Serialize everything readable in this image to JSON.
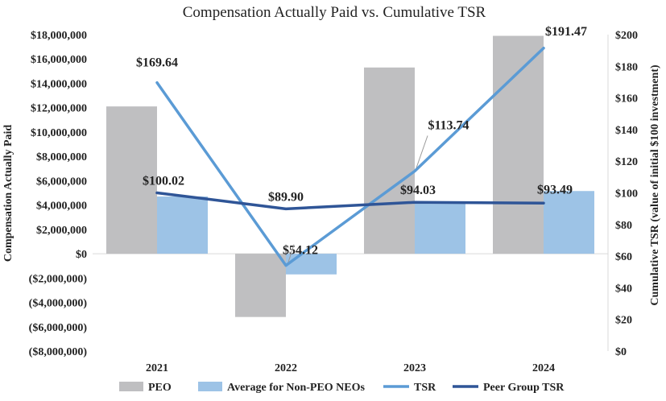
{
  "chart_data": {
    "type": "bar+line",
    "title": "Compensation Actually Paid vs. Cumulative TSR",
    "categories": [
      "2021",
      "2022",
      "2023",
      "2024"
    ],
    "ylabel": "Compensation Actually Paid",
    "y2label": "Cumulative TSR (value of initial $100 investment)",
    "ylim": [
      -8000000,
      18000000
    ],
    "y2lim": [
      0,
      200
    ],
    "yticks": [
      {
        "value": 18000000,
        "label": "$18,000,000"
      },
      {
        "value": 16000000,
        "label": "$16,000,000"
      },
      {
        "value": 14000000,
        "label": "$14,000,000"
      },
      {
        "value": 12000000,
        "label": "$12,000,000"
      },
      {
        "value": 10000000,
        "label": "$10,000,000"
      },
      {
        "value": 8000000,
        "label": "$8,000,000"
      },
      {
        "value": 6000000,
        "label": "$6,000,000"
      },
      {
        "value": 4000000,
        "label": "$4,000,000"
      },
      {
        "value": 2000000,
        "label": "$2,000,000"
      },
      {
        "value": 0,
        "label": "$0"
      },
      {
        "value": -2000000,
        "label": "($2,000,000)"
      },
      {
        "value": -4000000,
        "label": "($4,000,000)"
      },
      {
        "value": -6000000,
        "label": "($6,000,000)"
      },
      {
        "value": -8000000,
        "label": "($8,000,000)"
      }
    ],
    "y2ticks": [
      {
        "value": 200,
        "label": "$200"
      },
      {
        "value": 180,
        "label": "$180"
      },
      {
        "value": 160,
        "label": "$160"
      },
      {
        "value": 140,
        "label": "$140"
      },
      {
        "value": 120,
        "label": "$120"
      },
      {
        "value": 100,
        "label": "$100"
      },
      {
        "value": 80,
        "label": "$80"
      },
      {
        "value": 60,
        "label": "$60"
      },
      {
        "value": 40,
        "label": "$40"
      },
      {
        "value": 20,
        "label": "$20"
      },
      {
        "value": 0,
        "label": "$0"
      }
    ],
    "bar_series": [
      {
        "name": "PEO",
        "color": "#bfbfc1",
        "values": [
          12100000,
          -5200000,
          15300000,
          17900000
        ]
      },
      {
        "name": "Average for Non-PEO NEOs",
        "color": "#9dc3e6",
        "values": [
          4700000,
          -1700000,
          4100000,
          5150000
        ]
      }
    ],
    "line_series": [
      {
        "name": "TSR",
        "color": "#5b9bd5",
        "values": [
          169.64,
          54.12,
          113.74,
          191.47
        ],
        "labels": [
          "$169.64",
          "$54.12",
          "$113.74",
          "$191.47"
        ]
      },
      {
        "name": "Peer Group TSR",
        "color": "#2f5597",
        "values": [
          100.02,
          89.9,
          94.03,
          93.49
        ],
        "labels": [
          "$100.02",
          "$89.90",
          "$94.03",
          "$93.49"
        ]
      }
    ],
    "legend": [
      "PEO",
      "Average for Non-PEO NEOs",
      "TSR",
      "Peer Group TSR"
    ],
    "legend_position": "bottom"
  }
}
